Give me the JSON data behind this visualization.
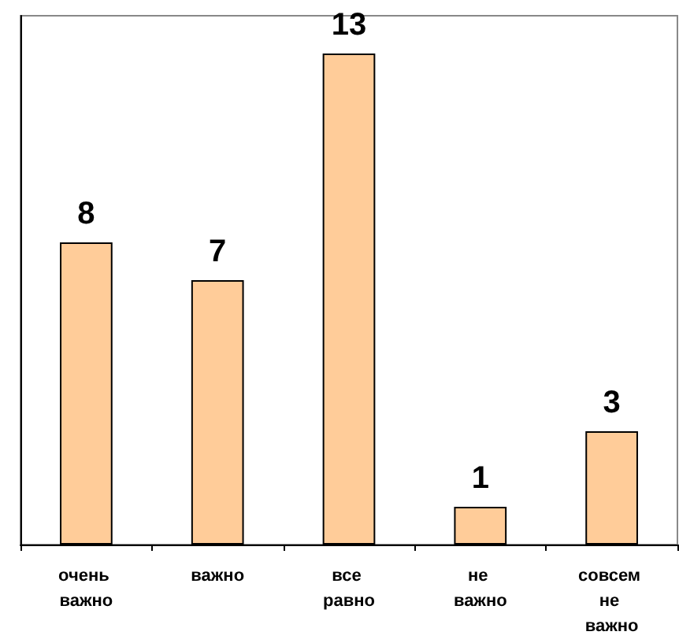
{
  "chart_data": {
    "type": "bar",
    "categories": [
      "очень важно",
      "важно",
      "все равно",
      "не важно",
      "совсем не важно"
    ],
    "values": [
      8,
      7,
      13,
      1,
      3
    ],
    "color": "#ffcc99",
    "ylim": [
      0,
      14
    ],
    "data_labels": true,
    "tick_labels": "x"
  }
}
